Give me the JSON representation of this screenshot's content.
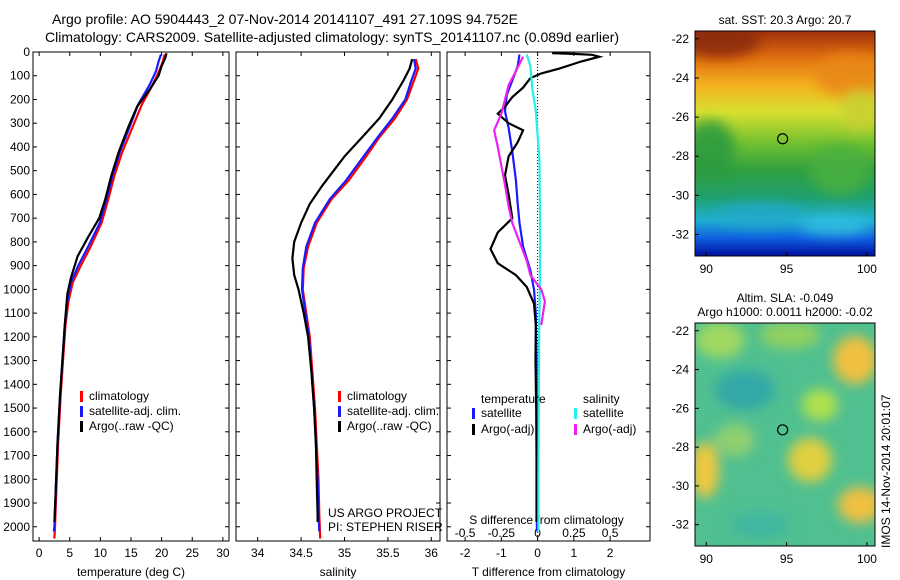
{
  "header": {
    "line1": "Argo profile: AO 5904443_2 07-Nov-2014 20141107_491 27.109S 94.752E",
    "line2": "Climatology: CARS2009. Satellite-adjusted climatology: synTS_20141107.nc (0.089d earlier)"
  },
  "side_text": "IMOS 14-Nov-2014 20:01:07",
  "colors": {
    "red": "#ff0000",
    "blue": "#1a1aff",
    "black": "#000000",
    "cyan": "#22eeee",
    "magenta": "#ee22ee"
  },
  "chart_data": [
    {
      "type": "line",
      "id": "temperature",
      "xlabel": "temperature (deg C)",
      "xlim": [
        -1,
        31
      ],
      "ylim": [
        2060,
        0
      ],
      "xticks": [
        0,
        5,
        10,
        15,
        20,
        25,
        30
      ],
      "yticks": [
        0,
        100,
        200,
        300,
        400,
        500,
        600,
        700,
        800,
        900,
        1000,
        1100,
        1200,
        1300,
        1400,
        1500,
        1600,
        1700,
        1800,
        1900,
        2000
      ],
      "legend": [
        {
          "label": "climatology",
          "color": "red"
        },
        {
          "label": "satellite-adj. clim.",
          "color": "blue"
        },
        {
          "label": "Argo(..raw -QC)",
          "color": "black"
        }
      ],
      "series": [
        {
          "color": "red",
          "points": [
            [
              20.5,
              10
            ],
            [
              20.2,
              40
            ],
            [
              19.6,
              80
            ],
            [
              18.5,
              140
            ],
            [
              16.8,
              220
            ],
            [
              15.2,
              320
            ],
            [
              13.6,
              420
            ],
            [
              12.3,
              520
            ],
            [
              11.3,
              620
            ],
            [
              10.2,
              720
            ],
            [
              8.4,
              820
            ],
            [
              6.8,
              900
            ],
            [
              5.5,
              970
            ],
            [
              4.8,
              1050
            ],
            [
              4.3,
              1150
            ],
            [
              3.9,
              1300
            ],
            [
              3.5,
              1450
            ],
            [
              3.1,
              1650
            ],
            [
              2.8,
              1850
            ],
            [
              2.6,
              2000
            ],
            [
              2.5,
              2050
            ]
          ]
        },
        {
          "color": "blue",
          "points": [
            [
              19.9,
              10
            ],
            [
              19.5,
              40
            ],
            [
              19.1,
              80
            ],
            [
              18.0,
              140
            ],
            [
              16.2,
              220
            ],
            [
              14.7,
              320
            ],
            [
              13.2,
              420
            ],
            [
              12.0,
              520
            ],
            [
              11.0,
              620
            ],
            [
              9.9,
              720
            ],
            [
              8.0,
              820
            ],
            [
              6.4,
              900
            ],
            [
              5.2,
              970
            ],
            [
              4.6,
              1050
            ],
            [
              4.2,
              1150
            ],
            [
              3.8,
              1300
            ],
            [
              3.4,
              1450
            ],
            [
              3.0,
              1650
            ],
            [
              2.7,
              1850
            ],
            [
              2.5,
              2000
            ],
            [
              2.4,
              2020
            ]
          ]
        },
        {
          "color": "black",
          "points": [
            [
              20.8,
              5
            ],
            [
              20.6,
              25
            ],
            [
              20.0,
              60
            ],
            [
              19.5,
              100
            ],
            [
              18.0,
              160
            ],
            [
              16.0,
              230
            ],
            [
              14.5,
              320
            ],
            [
              13.0,
              420
            ],
            [
              11.8,
              520
            ],
            [
              10.8,
              620
            ],
            [
              9.8,
              700
            ],
            [
              8.0,
              780
            ],
            [
              6.3,
              860
            ],
            [
              5.2,
              950
            ],
            [
              4.6,
              1020
            ],
            [
              4.2,
              1150
            ],
            [
              3.8,
              1300
            ],
            [
              3.4,
              1450
            ],
            [
              3.0,
              1650
            ],
            [
              2.7,
              1850
            ],
            [
              2.5,
              1980
            ]
          ]
        }
      ]
    },
    {
      "type": "line",
      "id": "salinity",
      "xlabel": "salinity",
      "xlim": [
        33.75,
        36.1
      ],
      "ylim": [
        2060,
        0
      ],
      "xticks": [
        34,
        34.5,
        35,
        35.5,
        36
      ],
      "legend": [
        {
          "label": "climatology",
          "color": "red"
        },
        {
          "label": "satellite-adj. clim.",
          "color": "blue"
        },
        {
          "label": "Argo(..raw -QC)",
          "color": "black"
        }
      ],
      "annotation": [
        "US ARGO PROJECT",
        "PI: STEPHEN RISER"
      ],
      "series": [
        {
          "color": "red",
          "points": [
            [
              35.82,
              30
            ],
            [
              35.85,
              70
            ],
            [
              35.8,
              120
            ],
            [
              35.72,
              200
            ],
            [
              35.58,
              280
            ],
            [
              35.4,
              360
            ],
            [
              35.25,
              440
            ],
            [
              35.05,
              540
            ],
            [
              34.85,
              620
            ],
            [
              34.68,
              720
            ],
            [
              34.58,
              820
            ],
            [
              34.53,
              910
            ],
            [
              34.52,
              1000
            ],
            [
              34.56,
              1100
            ],
            [
              34.6,
              1200
            ],
            [
              34.63,
              1350
            ],
            [
              34.66,
              1500
            ],
            [
              34.68,
              1650
            ],
            [
              34.7,
              1800
            ],
            [
              34.71,
              1950
            ],
            [
              34.72,
              2050
            ]
          ]
        },
        {
          "color": "blue",
          "points": [
            [
              35.8,
              30
            ],
            [
              35.82,
              70
            ],
            [
              35.77,
              120
            ],
            [
              35.7,
              200
            ],
            [
              35.55,
              280
            ],
            [
              35.38,
              360
            ],
            [
              35.22,
              440
            ],
            [
              35.02,
              540
            ],
            [
              34.83,
              620
            ],
            [
              34.66,
              720
            ],
            [
              34.56,
              820
            ],
            [
              34.52,
              910
            ],
            [
              34.51,
              1000
            ],
            [
              34.55,
              1100
            ],
            [
              34.59,
              1200
            ],
            [
              34.62,
              1350
            ],
            [
              34.65,
              1500
            ],
            [
              34.67,
              1650
            ],
            [
              34.69,
              1800
            ],
            [
              34.7,
              1950
            ],
            [
              34.71,
              2020
            ]
          ]
        },
        {
          "color": "black",
          "points": [
            [
              35.78,
              30
            ],
            [
              35.75,
              70
            ],
            [
              35.68,
              120
            ],
            [
              35.55,
              200
            ],
            [
              35.4,
              280
            ],
            [
              35.2,
              360
            ],
            [
              35.0,
              440
            ],
            [
              34.75,
              560
            ],
            [
              34.6,
              640
            ],
            [
              34.5,
              720
            ],
            [
              34.42,
              800
            ],
            [
              34.4,
              870
            ],
            [
              34.42,
              940
            ],
            [
              34.47,
              1000
            ],
            [
              34.53,
              1100
            ],
            [
              34.58,
              1200
            ],
            [
              34.62,
              1350
            ],
            [
              34.65,
              1500
            ],
            [
              34.67,
              1650
            ],
            [
              34.68,
              1800
            ],
            [
              34.69,
              1950
            ],
            [
              34.69,
              1980
            ]
          ]
        }
      ]
    },
    {
      "type": "line",
      "id": "differences",
      "xlabel": "T difference from climatology",
      "xlabel_top": "S difference from climatology",
      "xlim": [
        -2.5,
        3.1
      ],
      "ylim": [
        2060,
        0
      ],
      "xticks": [
        -2,
        -1,
        0,
        1,
        2
      ],
      "xticks_top": [
        {
          "v": -0.5,
          "label": "-0.5"
        },
        {
          "v": -0.25,
          "label": "-0.25"
        },
        {
          "v": 0,
          "label": "0"
        },
        {
          "v": 0.25,
          "label": "0.25"
        },
        {
          "v": 0.5,
          "label": "0.5"
        }
      ],
      "legend_t": {
        "heading": "temperature",
        "items": [
          {
            "label": "satellite",
            "color": "blue"
          },
          {
            "label": "Argo(-adj)",
            "color": "black"
          }
        ]
      },
      "legend_s": {
        "heading": "salinity",
        "items": [
          {
            "label": "satellite",
            "color": "cyan"
          },
          {
            "label": "Argo(-adj)",
            "color": "magenta"
          }
        ]
      },
      "series": [
        {
          "name": "T satellite",
          "color": "blue",
          "points": [
            [
              -0.5,
              10
            ],
            [
              -0.55,
              60
            ],
            [
              -0.7,
              120
            ],
            [
              -0.85,
              180
            ],
            [
              -0.9,
              250
            ],
            [
              -0.8,
              320
            ],
            [
              -0.7,
              420
            ],
            [
              -0.6,
              540
            ],
            [
              -0.55,
              640
            ],
            [
              -0.5,
              720
            ],
            [
              -0.4,
              820
            ],
            [
              -0.2,
              920
            ],
            [
              -0.1,
              1000
            ],
            [
              -0.05,
              1100
            ],
            [
              -0.03,
              1300
            ],
            [
              -0.02,
              1600
            ],
            [
              -0.02,
              1900
            ],
            [
              -0.02,
              2020
            ]
          ]
        },
        {
          "name": "T Argo",
          "color": "black",
          "points": [
            [
              0.4,
              5
            ],
            [
              1.0,
              8
            ],
            [
              1.5,
              12
            ],
            [
              1.7,
              20
            ],
            [
              1.2,
              40
            ],
            [
              0.6,
              70
            ],
            [
              0.1,
              90
            ],
            [
              -0.2,
              110
            ],
            [
              -0.4,
              150
            ],
            [
              -0.7,
              190
            ],
            [
              -0.9,
              230
            ],
            [
              -1.1,
              260
            ],
            [
              -0.8,
              300
            ],
            [
              -0.4,
              330
            ],
            [
              -0.55,
              380
            ],
            [
              -0.8,
              440
            ],
            [
              -0.9,
              520
            ],
            [
              -0.8,
              600
            ],
            [
              -0.7,
              700
            ],
            [
              -1.1,
              760
            ],
            [
              -1.3,
              830
            ],
            [
              -1.1,
              890
            ],
            [
              -0.6,
              940
            ],
            [
              -0.3,
              990
            ],
            [
              -0.1,
              1060
            ],
            [
              -0.05,
              1150
            ],
            [
              -0.06,
              1300
            ],
            [
              -0.04,
              1500
            ],
            [
              -0.03,
              1700
            ],
            [
              -0.03,
              1900
            ],
            [
              -0.03,
              1980
            ]
          ]
        },
        {
          "name": "S satellite",
          "color": "cyan",
          "points": [
            [
              -0.3,
              10
            ],
            [
              -0.2,
              60
            ],
            [
              -0.15,
              150
            ],
            [
              -0.05,
              250
            ],
            [
              0.0,
              350
            ],
            [
              0.05,
              450
            ],
            [
              0.06,
              600
            ],
            [
              0.07,
              800
            ],
            [
              0.06,
              1000
            ],
            [
              0.04,
              1200
            ],
            [
              0.03,
              1500
            ],
            [
              0.02,
              1800
            ],
            [
              0.02,
              2020
            ]
          ]
        },
        {
          "name": "S Argo",
          "color": "magenta",
          "points": [
            [
              -0.4,
              20
            ],
            [
              -0.6,
              80
            ],
            [
              -0.8,
              140
            ],
            [
              -0.9,
              200
            ],
            [
              -1.0,
              260
            ],
            [
              -1.2,
              330
            ],
            [
              -1.1,
              400
            ],
            [
              -1.0,
              480
            ],
            [
              -0.9,
              560
            ],
            [
              -0.8,
              650
            ],
            [
              -0.7,
              720
            ],
            [
              -0.5,
              800
            ],
            [
              -0.3,
              880
            ],
            [
              -0.2,
              940
            ],
            [
              0.1,
              1000
            ],
            [
              0.2,
              1050
            ],
            [
              0.1,
              1150
            ]
          ]
        }
      ]
    }
  ],
  "maps": [
    {
      "id": "sst_map",
      "title": "sat. SST: 20.3 Argo: 20.7",
      "xticks": [
        90,
        95,
        100
      ],
      "yticks": [
        -22,
        -24,
        -26,
        -28,
        -30,
        -32
      ],
      "xlim": [
        89.3,
        100.5
      ],
      "ylim": [
        -33.1,
        -21.6
      ],
      "marker": {
        "lon": 94.752,
        "lat": -27.109
      }
    },
    {
      "id": "sla_map",
      "title_line1": "Altim. SLA: -0.049",
      "title_line2": "Argo h1000: 0.0011 h2000: -0.02",
      "xticks": [
        90,
        95,
        100
      ],
      "yticks": [
        -22,
        -24,
        -26,
        -28,
        -30,
        -32
      ],
      "xlim": [
        89.3,
        100.5
      ],
      "ylim": [
        -33.1,
        -21.6
      ],
      "marker": {
        "lon": 94.752,
        "lat": -27.109
      }
    }
  ]
}
